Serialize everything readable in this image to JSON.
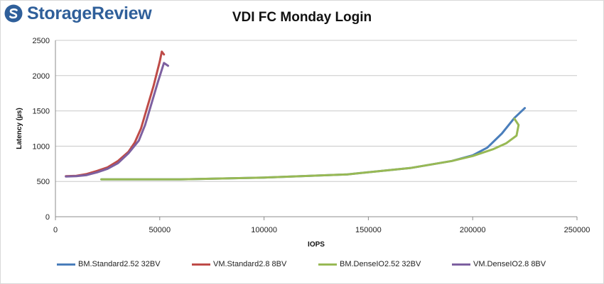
{
  "brand": {
    "name": "StorageReview",
    "logo_color": "#2f5f9a"
  },
  "chart_data": {
    "type": "line",
    "title": "VDI FC Monday Login",
    "xlabel": "IOPS",
    "ylabel": "Latency (µs)",
    "xlim": [
      0,
      250000
    ],
    "ylim": [
      0,
      2500
    ],
    "xticks": [
      0,
      50000,
      100000,
      150000,
      200000,
      250000
    ],
    "xtick_labels": [
      "0",
      "50000",
      "100000",
      "150000",
      "200000",
      "250000"
    ],
    "yticks": [
      0,
      500,
      1000,
      1500,
      2000,
      2500
    ],
    "ytick_labels": [
      "0",
      "500",
      "1000",
      "1500",
      "2000",
      "2500"
    ],
    "grid": "horizontal",
    "legend_position": "bottom",
    "series": [
      {
        "name": "BM.Standard2.52 32BV",
        "color": "#4a7ebb",
        "x": [
          22000,
          60000,
          100000,
          140000,
          170000,
          190000,
          200000,
          207000,
          214000,
          220000,
          225000
        ],
        "y": [
          530,
          530,
          555,
          600,
          690,
          790,
          870,
          980,
          1180,
          1400,
          1540
        ]
      },
      {
        "name": "VM.Standard2.8 8BV",
        "color": "#be4b48",
        "x": [
          5000,
          10000,
          15000,
          20000,
          25000,
          30000,
          35000,
          38000,
          41000,
          44000,
          47000,
          50000,
          51000,
          52000
        ],
        "y": [
          575,
          580,
          605,
          650,
          700,
          790,
          920,
          1050,
          1250,
          1550,
          1850,
          2200,
          2340,
          2300
        ]
      },
      {
        "name": "BM.DenseIO2.52 32BV",
        "color": "#98b954",
        "x": [
          22000,
          60000,
          100000,
          140000,
          170000,
          190000,
          200000,
          210000,
          216000,
          221000,
          222000,
          220000
        ],
        "y": [
          530,
          530,
          555,
          600,
          690,
          790,
          860,
          960,
          1040,
          1150,
          1300,
          1390
        ]
      },
      {
        "name": "VM.DenseIO2.8 8BV",
        "color": "#7d60a0",
        "x": [
          5000,
          10000,
          15000,
          20000,
          25000,
          30000,
          35000,
          40000,
          43000,
          46000,
          49000,
          52000,
          54000
        ],
        "y": [
          570,
          575,
          590,
          630,
          680,
          760,
          900,
          1080,
          1300,
          1600,
          1900,
          2180,
          2140
        ]
      }
    ]
  }
}
